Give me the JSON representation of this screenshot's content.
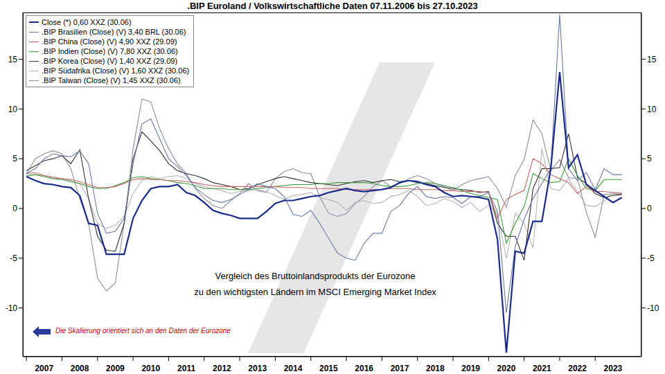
{
  "chart_data": {
    "type": "line",
    "title": ".BIP Euroland / Volkswirtschaftliche Daten 07.11.2006 bis 27.10.2023",
    "annotations": [
      "Vergleich des Bruttoinlandsprodukts der Eurozone",
      "zu den wichtigsten Ländern im MSCI Emerging Market Index",
      "Die Skalierung orientiert sich an den Daten der Eurozone"
    ],
    "legend": "top-left",
    "grid": false,
    "xlim": [
      2006.9,
      2024.3
    ],
    "xticks": [
      2007,
      2008,
      2009,
      2010,
      2011,
      2012,
      2013,
      2014,
      2015,
      2016,
      2017,
      2018,
      2019,
      2020,
      2021,
      2022,
      2023
    ],
    "ylim": [
      -14.9,
      19.7
    ],
    "yticks": [
      -10,
      -5,
      0,
      5,
      10,
      15
    ],
    "x": [
      2007,
      2007.25,
      2007.5,
      2007.75,
      2008,
      2008.25,
      2008.5,
      2008.75,
      2009,
      2009.25,
      2009.5,
      2009.75,
      2010,
      2010.25,
      2010.5,
      2010.75,
      2011,
      2011.25,
      2011.5,
      2011.75,
      2012,
      2012.25,
      2012.5,
      2012.75,
      2013,
      2013.25,
      2013.5,
      2013.75,
      2014,
      2014.25,
      2014.5,
      2014.75,
      2015,
      2015.25,
      2015.5,
      2015.75,
      2016,
      2016.25,
      2016.5,
      2016.75,
      2017,
      2017.25,
      2017.5,
      2017.75,
      2018,
      2018.25,
      2018.5,
      2018.75,
      2019,
      2019.25,
      2019.5,
      2019.75,
      2020,
      2020.25,
      2020.5,
      2020.75,
      2021,
      2021.25,
      2021.5,
      2021.75,
      2022,
      2022.25,
      2022.5,
      2022.75,
      2023,
      2023.25,
      2023.5,
      2023.75
    ],
    "series": [
      {
        "name": "Close (*) 0,60 XXZ (30.06)",
        "color": "#1a2a8c",
        "values": [
          3.2,
          2.8,
          2.5,
          2.4,
          2.2,
          2.1,
          1.3,
          -1.5,
          -1.7,
          -4.6,
          -4.6,
          -4.6,
          -1.0,
          0.8,
          2.0,
          2.2,
          2.2,
          2.4,
          1.6,
          1.3,
          0.6,
          -0.2,
          -0.5,
          -0.7,
          -1.0,
          -1.0,
          -1.0,
          -0.3,
          0.5,
          0.8,
          0.8,
          1.0,
          1.2,
          1.3,
          1.6,
          1.8,
          2.0,
          1.8,
          1.7,
          1.8,
          1.9,
          2.1,
          2.6,
          2.8,
          2.7,
          2.4,
          2.2,
          1.6,
          1.2,
          1.3,
          1.2,
          1.1,
          0.9,
          -3.1,
          -14.5,
          -4.3,
          -4.5,
          -1.3,
          -1.3,
          4.0,
          13.7,
          4.1,
          5.4,
          2.4,
          1.8,
          1.2,
          0.6,
          1.1
        ]
      },
      {
        "name": ".BIP Brasilien (Close) (V) 3,40 BRL (30.06)",
        "color": "#6878a8",
        "values": [
          3.5,
          4.0,
          5.0,
          5.5,
          5.3,
          5.2,
          5.8,
          4.5,
          -0.5,
          -2.5,
          -2.3,
          -1.0,
          4.5,
          8.5,
          9.0,
          7.0,
          5.0,
          4.2,
          3.3,
          2.1,
          1.4,
          0.8,
          0.6,
          0.9,
          1.4,
          1.9,
          2.5,
          2.2,
          2.0,
          1.2,
          -0.6,
          -0.8,
          -0.2,
          -1.5,
          -3.0,
          -4.5,
          -5.0,
          -5.2,
          -3.5,
          -2.5,
          -2.5,
          -0.3,
          0.3,
          1.5,
          2.2,
          1.2,
          1.0,
          1.2,
          1.1,
          0.5,
          1.2,
          1.2,
          1.6,
          -0.3,
          -10.5,
          -3.8,
          -1.1,
          1.0,
          2.5,
          4.0,
          19.5,
          4.0,
          2.8,
          3.6,
          1.9,
          4.0,
          3.4,
          3.4
        ]
      },
      {
        "name": ".BIP China (Close) (V) 4,90 XXZ (29.09)",
        "color": "#c86464",
        "values": [
          3.5,
          3.6,
          3.3,
          3.1,
          3.0,
          2.9,
          2.7,
          2.4,
          2.1,
          2.1,
          2.2,
          2.5,
          2.9,
          3.0,
          2.9,
          2.9,
          2.8,
          2.8,
          2.7,
          2.6,
          2.4,
          2.3,
          2.2,
          2.2,
          2.2,
          2.2,
          2.2,
          2.2,
          2.2,
          2.1,
          2.1,
          2.1,
          2.0,
          2.0,
          2.0,
          2.0,
          1.9,
          1.9,
          1.9,
          1.9,
          1.9,
          2.0,
          2.0,
          2.0,
          1.9,
          1.9,
          1.9,
          1.8,
          1.8,
          1.7,
          1.7,
          1.7,
          1.6,
          -1.0,
          0.9,
          1.4,
          1.8,
          5.0,
          4.5,
          3.4,
          3.0,
          2.6,
          1.5,
          2.2,
          1.7,
          1.7,
          1.6,
          1.5
        ]
      },
      {
        "name": ".BIP Indien (Close) (V) 7,80 XXZ (30.06)",
        "color": "#3c9a3c",
        "values": [
          3.3,
          3.4,
          3.2,
          3.0,
          2.9,
          2.7,
          2.5,
          2.2,
          2.0,
          2.0,
          2.3,
          2.6,
          3.1,
          3.2,
          3.0,
          2.9,
          2.8,
          2.6,
          2.5,
          2.3,
          2.0,
          2.0,
          2.0,
          1.9,
          1.9,
          1.9,
          2.0,
          2.1,
          2.2,
          2.3,
          2.4,
          2.4,
          2.4,
          2.5,
          2.5,
          2.6,
          2.6,
          2.6,
          2.6,
          2.5,
          2.3,
          2.2,
          2.2,
          2.3,
          2.5,
          2.6,
          2.5,
          2.3,
          2.1,
          1.8,
          1.5,
          1.3,
          1.1,
          0.9,
          -3.5,
          -1.5,
          0.2,
          3.5,
          3.0,
          2.6,
          2.7,
          5.0,
          3.3,
          2.0,
          1.8,
          2.9,
          2.9,
          2.9
        ]
      },
      {
        "name": ".BIP Korea (Close) (V) 1,40 XXZ (29.09)",
        "color": "#303030",
        "values": [
          3.8,
          4.3,
          4.8,
          5.0,
          5.3,
          4.5,
          5.9,
          1.0,
          -2.8,
          -4.2,
          -4.3,
          -1.5,
          5.0,
          7.7,
          6.8,
          5.8,
          4.5,
          3.8,
          3.5,
          3.3,
          3.0,
          2.6,
          2.4,
          2.2,
          1.9,
          2.0,
          2.4,
          2.7,
          3.0,
          3.2,
          3.0,
          2.8,
          2.6,
          2.5,
          2.4,
          2.3,
          2.5,
          2.7,
          2.8,
          2.6,
          2.8,
          2.9,
          2.7,
          2.8,
          2.6,
          2.5,
          2.3,
          2.1,
          2.0,
          1.9,
          1.8,
          1.6,
          1.7,
          -1.5,
          -2.8,
          -2.8,
          -5.2,
          2.0,
          4.0,
          4.0,
          4.1,
          7.5,
          3.1,
          2.5,
          1.5,
          1.1,
          1.3,
          1.4
        ]
      },
      {
        "name": ".BIP Südafrika (Close) (V) 1,60 XXZ (30.06)",
        "color": "#b4b4b4",
        "values": [
          3.2,
          3.4,
          3.3,
          3.2,
          3.0,
          2.8,
          2.5,
          1.0,
          -1.5,
          -2.0,
          -1.7,
          -0.8,
          1.5,
          2.8,
          3.2,
          3.0,
          3.2,
          3.3,
          3.0,
          2.5,
          2.2,
          2.0,
          1.8,
          1.5,
          1.7,
          1.8,
          1.9,
          1.7,
          1.3,
          0.9,
          1.3,
          1.4,
          1.6,
          1.1,
          0.9,
          0.6,
          -0.2,
          0.6,
          0.8,
          0.5,
          0.6,
          1.2,
          1.4,
          1.8,
          1.2,
          0.3,
          0.5,
          1.0,
          0.7,
          0.1,
          0.6,
          -0.3,
          0.3,
          -0.5,
          -5.0,
          -0.5,
          -1.5,
          -4.0,
          6.0,
          2.0,
          1.8,
          3.0,
          1.7,
          0.3,
          0.2,
          0.7,
          1.6,
          1.6
        ]
      },
      {
        "name": ".BIP Taiwan (Close) (V) 1,45 XXZ (30.06)",
        "color": "#8c8ca4",
        "values": [
          3.5,
          5.0,
          5.5,
          5.8,
          5.5,
          4.0,
          1.0,
          -1.5,
          -7.0,
          -8.3,
          -7.5,
          -1.5,
          6.0,
          11.0,
          10.7,
          8.0,
          6.0,
          4.5,
          3.5,
          2.0,
          1.0,
          0.3,
          0.0,
          0.8,
          1.5,
          2.5,
          1.8,
          1.6,
          3.0,
          3.7,
          4.0,
          3.6,
          3.5,
          1.2,
          -0.5,
          -0.8,
          -0.5,
          0.5,
          1.2,
          2.2,
          2.8,
          2.2,
          2.5,
          3.0,
          3.3,
          3.0,
          2.5,
          2.2,
          1.8,
          2.4,
          2.8,
          3.0,
          3.2,
          2.0,
          0.1,
          3.3,
          4.9,
          8.9,
          7.5,
          3.8,
          4.9,
          3.1,
          3.0,
          -0.4,
          -2.9,
          1.4,
          1.45,
          1.45
        ]
      }
    ]
  }
}
